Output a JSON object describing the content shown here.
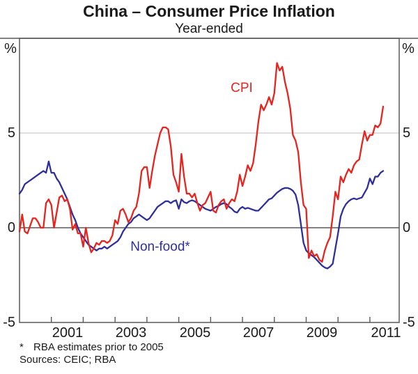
{
  "header": {
    "title": "China – Consumer Price Inflation",
    "subtitle": "Year-ended"
  },
  "axis": {
    "unit_left": "%",
    "unit_right": "%",
    "y_labels": [
      {
        "value": 5,
        "label": "5"
      },
      {
        "value": 0,
        "label": "0"
      },
      {
        "value": -5,
        "label": "-5"
      }
    ],
    "x_labels": [
      {
        "value": 2001.5,
        "label": "2001"
      },
      {
        "value": 2003.5,
        "label": "2003"
      },
      {
        "value": 2005.5,
        "label": "2005"
      },
      {
        "value": 2007.5,
        "label": "2007"
      },
      {
        "value": 2009.5,
        "label": "2009"
      },
      {
        "value": 2011.5,
        "label": "2011"
      }
    ]
  },
  "footnotes": {
    "marker": "*",
    "note": "RBA estimates prior to 2005",
    "sources": "Sources: CEIC; RBA"
  },
  "chart_data": {
    "type": "line",
    "title": "China – Consumer Price Inflation",
    "subtitle": "Year-ended",
    "ylabel": "%",
    "x_domain": [
      2000,
      2011.92
    ],
    "y_domain": [
      -5,
      10
    ],
    "y_gridlines": [
      5
    ],
    "zero_line": 0,
    "x_ticks": [
      2001,
      2002,
      2003,
      2004,
      2005,
      2006,
      2007,
      2008,
      2009,
      2010,
      2011
    ],
    "start_year": 2000,
    "points_per_year": 12,
    "frequency": "monthly, Jan 2000 - Jun 2011",
    "colors": {
      "cpi": "#e8231d",
      "non_food": "#2e2e9e",
      "frame": "#58595b",
      "grid": "#c9c9c9"
    },
    "series": [
      {
        "name": "Non-food*",
        "color": "#2e2e9e",
        "values": [
          1.8,
          2.0,
          2.3,
          2.4,
          2.5,
          2.6,
          2.7,
          2.8,
          2.9,
          3.0,
          2.9,
          3.5,
          2.9,
          2.9,
          2.6,
          2.4,
          2.1,
          1.8,
          1.5,
          1.1,
          0.7,
          0.4,
          0.0,
          -0.3,
          -0.5,
          -0.7,
          -0.9,
          -1.0,
          -1.1,
          -1.2,
          -1.1,
          -1.1,
          -1.0,
          -1.1,
          -1.0,
          -0.9,
          -0.8,
          -0.7,
          -0.5,
          -0.2,
          0.0,
          0.2,
          0.3,
          0.5,
          0.6,
          0.7,
          0.6,
          0.5,
          0.4,
          0.5,
          0.7,
          0.9,
          1.1,
          1.2,
          1.3,
          1.4,
          1.4,
          1.3,
          1.4,
          1.45,
          1.0,
          1.5,
          1.35,
          1.3,
          1.4,
          1.45,
          1.4,
          1.3,
          1.2,
          1.1,
          1.0,
          0.95,
          0.9,
          1.0,
          1.1,
          1.15,
          1.25,
          1.3,
          1.25,
          1.1,
          1.0,
          0.85,
          0.8,
          1.0,
          1.1,
          1.0,
          1.05,
          1.0,
          0.95,
          0.9,
          0.9,
          1.05,
          1.2,
          1.35,
          1.5,
          1.55,
          1.7,
          1.85,
          1.95,
          2.05,
          2.1,
          2.1,
          2.05,
          1.95,
          1.75,
          1.2,
          0.2,
          -0.8,
          -1.2,
          -1.35,
          -1.45,
          -1.55,
          -1.7,
          -1.85,
          -2.0,
          -2.1,
          -2.15,
          -2.05,
          -1.9,
          -1.1,
          -0.3,
          0.6,
          1.0,
          1.25,
          1.4,
          1.5,
          1.55,
          1.5,
          1.55,
          1.6,
          1.85,
          2.1,
          2.6,
          2.3,
          2.7,
          2.7,
          2.9,
          3.0
        ]
      },
      {
        "name": "CPI",
        "color": "#e8231d",
        "values": [
          -0.2,
          0.7,
          -0.2,
          -0.3,
          0.1,
          0.5,
          0.5,
          0.3,
          0.0,
          0.0,
          1.3,
          1.5,
          1.2,
          0.0,
          0.8,
          1.6,
          1.7,
          1.4,
          1.5,
          1.0,
          -0.1,
          0.2,
          -0.3,
          -0.3,
          -1.0,
          0.0,
          -0.8,
          -1.3,
          -1.1,
          -0.8,
          -0.9,
          -0.7,
          -0.7,
          -0.8,
          -0.7,
          -0.4,
          0.4,
          0.2,
          0.9,
          1.0,
          0.7,
          0.3,
          0.5,
          0.9,
          1.1,
          1.8,
          3.0,
          3.2,
          3.2,
          2.1,
          3.0,
          3.8,
          4.4,
          5.0,
          5.3,
          5.3,
          5.2,
          4.3,
          2.8,
          2.4,
          1.9,
          3.9,
          2.7,
          1.8,
          1.8,
          1.6,
          1.8,
          1.3,
          0.9,
          1.2,
          1.3,
          1.6,
          1.9,
          0.9,
          0.8,
          1.2,
          1.4,
          1.5,
          1.0,
          1.3,
          1.5,
          1.4,
          1.9,
          2.8,
          2.2,
          2.7,
          3.3,
          3.0,
          3.4,
          4.4,
          5.6,
          6.5,
          6.2,
          6.5,
          6.9,
          6.5,
          7.1,
          8.7,
          8.3,
          8.5,
          7.7,
          7.1,
          6.3,
          4.9,
          4.6,
          4.0,
          2.4,
          1.2,
          1.0,
          -1.6,
          -1.2,
          -1.5,
          -1.4,
          -1.7,
          -1.8,
          -1.2,
          -0.8,
          -0.5,
          0.6,
          1.9,
          1.5,
          2.7,
          2.4,
          2.8,
          3.1,
          2.9,
          3.3,
          3.5,
          3.6,
          4.4,
          5.1,
          4.6,
          4.9,
          4.9,
          5.4,
          5.3,
          5.5,
          6.4
        ]
      }
    ],
    "legend_position": "in-plot labels"
  }
}
